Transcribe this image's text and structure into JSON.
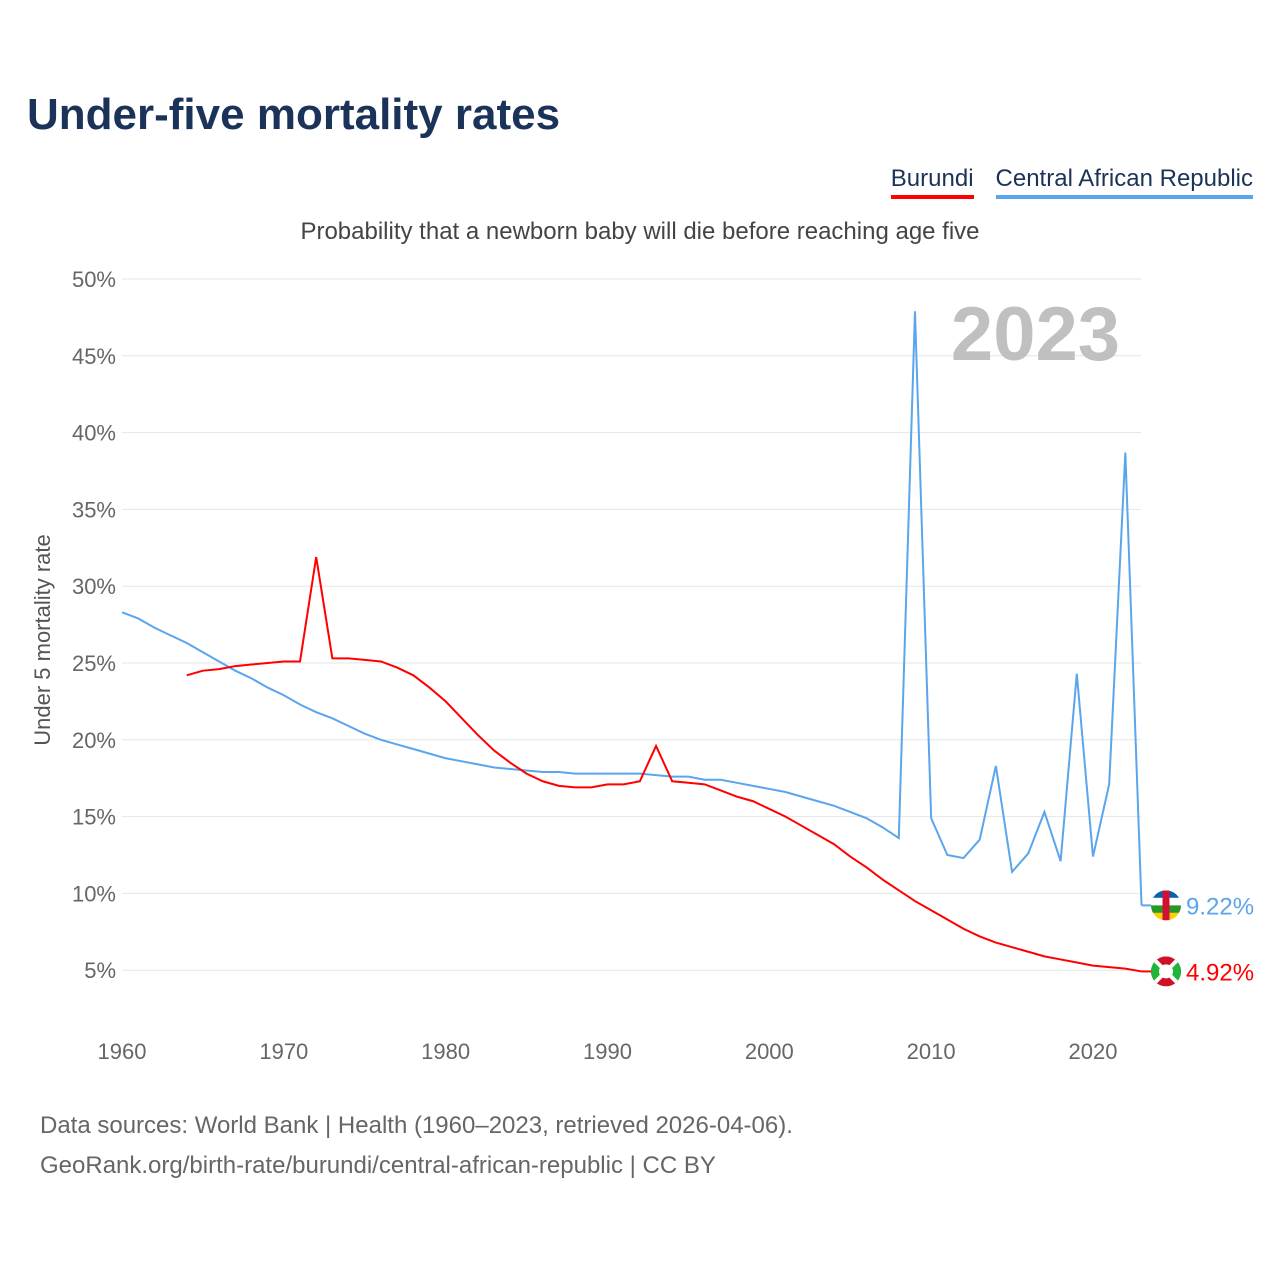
{
  "title": "Under-five mortality rates",
  "subtitle": "Probability that a newborn baby will die before reaching age five",
  "legend": [
    {
      "label": "Burundi",
      "color": "#ff0000"
    },
    {
      "label": "Central African Republic",
      "color": "#5aa5ec"
    }
  ],
  "footer": {
    "line1": "Data sources: World Bank | Health (1960–2023, retrieved 2026-04-06).",
    "line2": "GeoRank.org/birth-rate/burundi/central-african-republic | CC BY"
  },
  "chart_data": {
    "type": "line",
    "title": "Under-five mortality rates",
    "ylabel": "Under 5 mortality rate",
    "xlabel": "",
    "xlim": [
      1960,
      2023
    ],
    "ylim": [
      0,
      50
    ],
    "grid": true,
    "year_watermark": "2023",
    "x_ticks": [
      "1960",
      "1970",
      "1980",
      "1990",
      "2000",
      "2010",
      "2020"
    ],
    "y_ticks": [
      "5%",
      "10%",
      "15%",
      "20%",
      "25%",
      "30%",
      "35%",
      "40%",
      "45%",
      "50%"
    ],
    "series": [
      {
        "name": "Central African Republic",
        "color": "#5aa5ec",
        "start_year": 1960,
        "end_label": "9.22%",
        "values": [
          28.3,
          27.9,
          27.3,
          26.8,
          26.3,
          25.7,
          25.1,
          24.5,
          24.0,
          23.4,
          22.9,
          22.3,
          21.8,
          21.4,
          20.9,
          20.4,
          20.0,
          19.7,
          19.4,
          19.1,
          18.8,
          18.6,
          18.4,
          18.2,
          18.1,
          18.0,
          17.9,
          17.9,
          17.8,
          17.8,
          17.8,
          17.8,
          17.8,
          17.7,
          17.6,
          17.6,
          17.4,
          17.4,
          17.2,
          17.0,
          16.8,
          16.6,
          16.3,
          16.0,
          15.7,
          15.3,
          14.9,
          14.3,
          13.6,
          47.9,
          14.9,
          12.5,
          12.3,
          13.5,
          18.3,
          11.4,
          12.6,
          15.3,
          12.1,
          24.3,
          12.4,
          17.1,
          38.7,
          9.22
        ]
      },
      {
        "name": "Burundi",
        "color": "#ff0000",
        "start_year": 1964,
        "end_label": "4.92%",
        "values": [
          24.2,
          24.5,
          24.6,
          24.8,
          24.9,
          25.0,
          25.1,
          25.1,
          31.9,
          25.3,
          25.3,
          25.2,
          25.1,
          24.7,
          24.2,
          23.4,
          22.5,
          21.4,
          20.3,
          19.3,
          18.5,
          17.8,
          17.3,
          17.0,
          16.9,
          16.9,
          17.1,
          17.1,
          17.3,
          19.6,
          17.3,
          17.2,
          17.1,
          16.7,
          16.3,
          16.0,
          15.5,
          15.0,
          14.4,
          13.8,
          13.2,
          12.4,
          11.7,
          10.9,
          10.2,
          9.5,
          8.9,
          8.3,
          7.7,
          7.2,
          6.8,
          6.5,
          6.2,
          5.9,
          5.7,
          5.5,
          5.3,
          5.2,
          5.1,
          4.92
        ]
      }
    ]
  }
}
